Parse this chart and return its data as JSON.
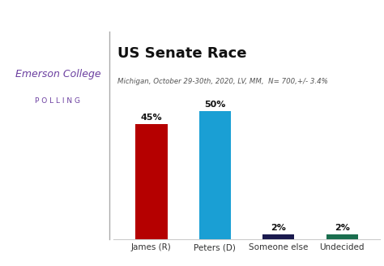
{
  "title": "US Senate Race",
  "subtitle": "Michigan, October 29-30th, 2020, LV, MM,  N= 700,+/- 3.4%",
  "categories": [
    "James (R)",
    "Peters (D)",
    "Someone else",
    "Undecided"
  ],
  "values": [
    45,
    50,
    2,
    2
  ],
  "bar_colors": [
    "#b50000",
    "#1a9fd4",
    "#1a1a4e",
    "#1a6e4e"
  ],
  "value_labels": [
    "45%",
    "50%",
    "2%",
    "2%"
  ],
  "logo_text_emerson": "Emerson College",
  "logo_text_polling": "P O L L I N G",
  "logo_color": "#6b3fa0",
  "header_bar_color": "#5b2d8e",
  "divider_color": "#aaaaaa",
  "bg_color": "#ffffff",
  "ylim": [
    0,
    58
  ],
  "bar_width": 0.5
}
